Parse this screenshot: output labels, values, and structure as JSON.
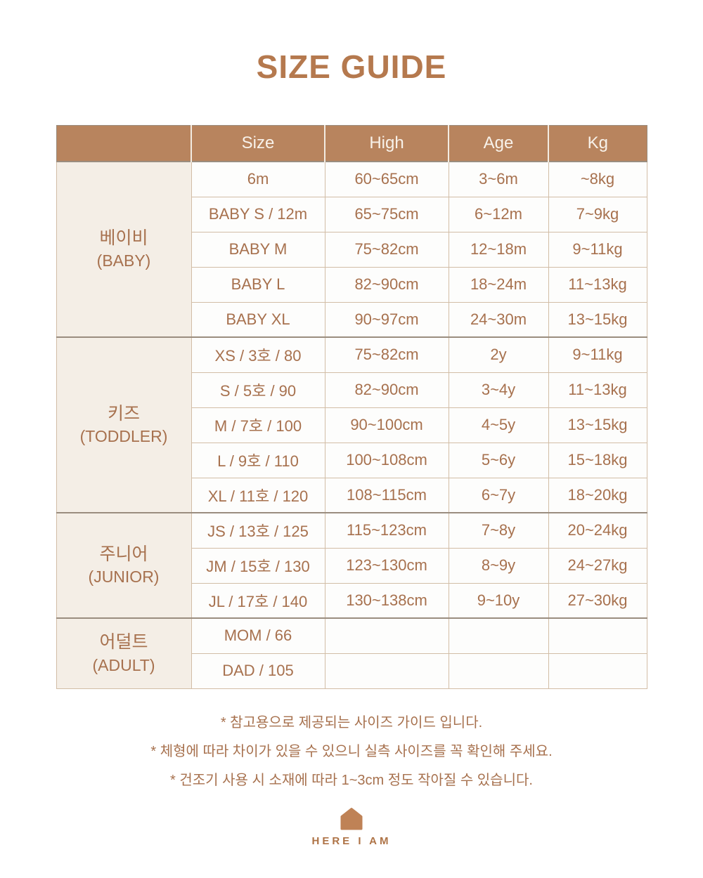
{
  "page": {
    "title": "SIZE GUIDE"
  },
  "table": {
    "columns": [
      "Size",
      "High",
      "Age",
      "Kg"
    ],
    "sections": [
      {
        "group_ko": "베이비",
        "group_en": "(BABY)",
        "rows": [
          [
            "6m",
            "60~65cm",
            "3~6m",
            "~8kg"
          ],
          [
            "BABY S / 12m",
            "65~75cm",
            "6~12m",
            "7~9kg"
          ],
          [
            "BABY M",
            "75~82cm",
            "12~18m",
            "9~11kg"
          ],
          [
            "BABY L",
            "82~90cm",
            "18~24m",
            "11~13kg"
          ],
          [
            "BABY XL",
            "90~97cm",
            "24~30m",
            "13~15kg"
          ]
        ]
      },
      {
        "group_ko": "키즈",
        "group_en": "(TODDLER)",
        "rows": [
          [
            "XS / 3호 / 80",
            "75~82cm",
            "2y",
            "9~11kg"
          ],
          [
            "S / 5호 / 90",
            "82~90cm",
            "3~4y",
            "11~13kg"
          ],
          [
            "M / 7호 / 100",
            "90~100cm",
            "4~5y",
            "13~15kg"
          ],
          [
            "L / 9호 / 110",
            "100~108cm",
            "5~6y",
            "15~18kg"
          ],
          [
            "XL / 11호 / 120",
            "108~115cm",
            "6~7y",
            "18~20kg"
          ]
        ]
      },
      {
        "group_ko": "주니어",
        "group_en": "(JUNIOR)",
        "rows": [
          [
            "JS / 13호 / 125",
            "115~123cm",
            "7~8y",
            "20~24kg"
          ],
          [
            "JM / 15호 / 130",
            "123~130cm",
            "8~9y",
            "24~27kg"
          ],
          [
            "JL / 17호 / 140",
            "130~138cm",
            "9~10y",
            "27~30kg"
          ]
        ]
      },
      {
        "group_ko": "어덜트",
        "group_en": "(ADULT)",
        "rows": [
          [
            "MOM / 66",
            "",
            "",
            ""
          ],
          [
            "DAD / 105",
            "",
            "",
            ""
          ]
        ]
      }
    ]
  },
  "footnotes": [
    "* 참고용으로 제공되는 사이즈 가이드 입니다.",
    "* 체형에 따라 차이가 있을 수 있으니 실측 사이즈를 꼭 확인해 주세요.",
    "* 건조기 사용 시 소재에 따라 1~3cm 정도 작아질 수 있습니다."
  ],
  "brand": {
    "name": "HERE I AM",
    "icon": "house-icon"
  },
  "colors": {
    "accent": "#b5794e",
    "header-bg": "#b8845e",
    "header-text": "#f8f2ea",
    "group-bg": "#f4eee6",
    "cell-bg": "#fdfdfc",
    "cell-text": "#a7714e",
    "border-inner": "#d2bda6",
    "border-section": "#9a8d7f",
    "brand": "#bf8256"
  }
}
